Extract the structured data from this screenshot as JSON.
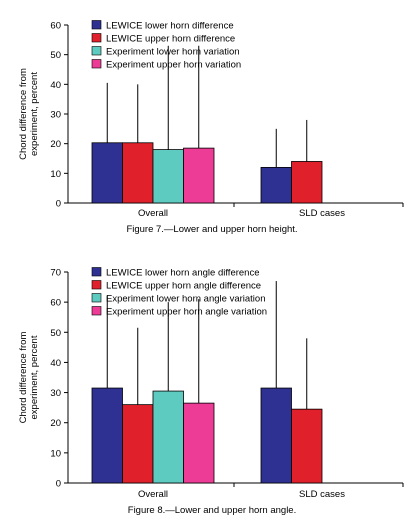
{
  "chart_data": [
    {
      "type": "bar",
      "title": "",
      "caption": "Figure 7.—Lower and upper horn height.",
      "xlabel": "",
      "ylabel": "Chord difference from experiment, percent",
      "ylabel_lines": [
        "Chord difference from",
        "experiment, percent"
      ],
      "ylim": [
        0,
        60
      ],
      "yticks": [
        "0",
        "10",
        "20",
        "30",
        "40",
        "50",
        "60"
      ],
      "categories": [
        "Overall",
        "SLD cases"
      ],
      "legend_position": "top-left",
      "grid": false,
      "series": [
        {
          "name": "LEWICE lower horn difference",
          "color": "#2e3192",
          "values": [
            20.3,
            12.0
          ],
          "error_upper": [
            40.5,
            25.0
          ]
        },
        {
          "name": "LEWICE upper horn difference",
          "color": "#e0202a",
          "values": [
            20.3,
            14.0
          ],
          "error_upper": [
            40.0,
            28.0
          ]
        },
        {
          "name": "Experiment lower horn variation",
          "color": "#5ecbc0",
          "values": [
            18.0,
            null
          ],
          "error_upper": [
            53.0,
            null
          ]
        },
        {
          "name": "Experiment upper horn variation",
          "color": "#ec3c96",
          "values": [
            18.5,
            null
          ],
          "error_upper": [
            53.0,
            null
          ]
        }
      ]
    },
    {
      "type": "bar",
      "title": "",
      "caption": "Figure 8.—Lower and upper horn angle.",
      "xlabel": "",
      "ylabel": "Chord difference from experiment, percent",
      "ylabel_lines": [
        "Chord difference from",
        "experiment, percent"
      ],
      "ylim": [
        0,
        70
      ],
      "yticks": [
        "0",
        "10",
        "20",
        "30",
        "40",
        "50",
        "60",
        "70"
      ],
      "categories": [
        "Overall",
        "SLD cases"
      ],
      "legend_position": "top-left",
      "grid": false,
      "series": [
        {
          "name": "LEWICE lower horn angle difference",
          "color": "#2e3192",
          "values": [
            31.5,
            31.5
          ],
          "error_upper": [
            62.0,
            67.0
          ]
        },
        {
          "name": "LEWICE upper horn angle difference",
          "color": "#e0202a",
          "values": [
            26.0,
            24.5
          ],
          "error_upper": [
            51.5,
            48.0
          ]
        },
        {
          "name": "Experiment lower horn angle variation",
          "color": "#5ecbc0",
          "values": [
            30.5,
            null
          ],
          "error_upper": [
            60.0,
            null
          ]
        },
        {
          "name": "Experiment upper horn angle variation",
          "color": "#ec3c96",
          "values": [
            26.5,
            null
          ],
          "error_upper": [
            61.0,
            null
          ]
        }
      ]
    }
  ]
}
